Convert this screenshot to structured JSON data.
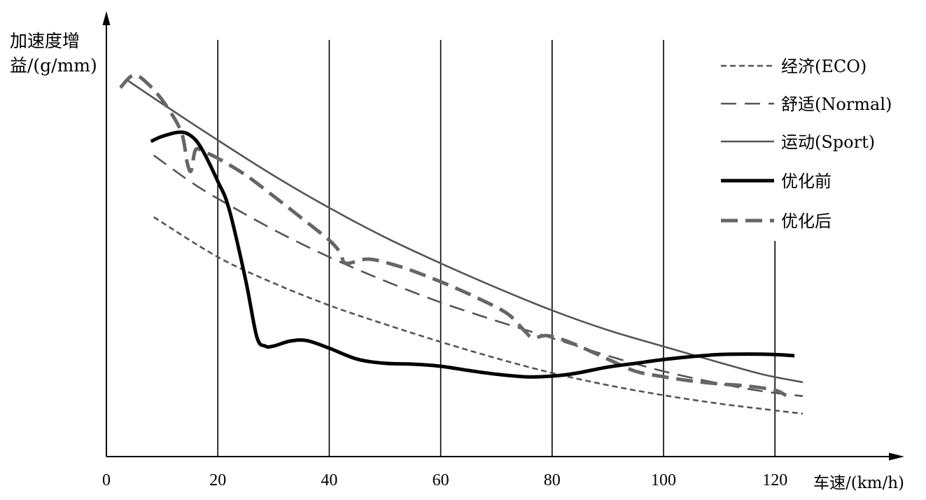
{
  "chart_data": {
    "type": "line",
    "ylabel_lines": [
      "加速度增",
      "益/(g/mm)"
    ],
    "xlabel": "车速/(km/h)",
    "xticks": [
      0,
      20,
      40,
      60,
      80,
      100,
      120
    ],
    "xlim": [
      0,
      140
    ],
    "ylim": [
      0,
      1
    ],
    "yticks_labeled": false,
    "grid": "vertical lines at x = 20, 40, 60, 80, 100, 120",
    "legend_position": "top-right",
    "series": [
      {
        "name": "经济(ECO)",
        "style": "short-dash",
        "color": "#555555",
        "x": [
          8.5,
          20,
          30,
          40,
          50,
          60,
          70,
          80,
          90,
          100,
          110,
          118,
          125
        ],
        "y": [
          0.57,
          0.475,
          0.413,
          0.36,
          0.315,
          0.273,
          0.234,
          0.199,
          0.17,
          0.146,
          0.126,
          0.113,
          0.102
        ]
      },
      {
        "name": "舒适(Normal)",
        "style": "long-dash",
        "color": "#555555",
        "x": [
          8.5,
          15,
          20,
          30,
          40,
          50,
          60,
          70,
          80,
          90,
          100,
          110,
          118,
          125
        ],
        "y": [
          0.717,
          0.655,
          0.614,
          0.54,
          0.475,
          0.418,
          0.367,
          0.323,
          0.282,
          0.24,
          0.203,
          0.174,
          0.155,
          0.144
        ]
      },
      {
        "name": "运动(Sport)",
        "style": "solid-thin",
        "color": "#555555",
        "x": [
          3.5,
          10,
          20,
          30,
          40,
          50,
          60,
          70,
          80,
          90,
          100,
          110,
          118,
          125
        ],
        "y": [
          0.898,
          0.84,
          0.753,
          0.669,
          0.592,
          0.522,
          0.46,
          0.402,
          0.348,
          0.301,
          0.262,
          0.224,
          0.195,
          0.177
        ]
      },
      {
        "name": "优化前",
        "style": "solid-thick",
        "color": "#000000",
        "x": [
          8,
          10,
          13,
          15,
          17,
          20,
          22,
          25,
          27,
          28.5,
          30,
          33,
          36,
          40,
          45,
          50,
          55,
          60,
          65,
          70,
          75,
          78,
          82,
          85,
          90,
          95,
          100,
          105,
          110,
          115,
          120,
          123.5
        ],
        "y": [
          0.75,
          0.762,
          0.772,
          0.765,
          0.735,
          0.655,
          0.59,
          0.42,
          0.285,
          0.263,
          0.263,
          0.275,
          0.276,
          0.258,
          0.232,
          0.222,
          0.22,
          0.215,
          0.205,
          0.196,
          0.19,
          0.19,
          0.194,
          0.2,
          0.213,
          0.222,
          0.231,
          0.238,
          0.243,
          0.244,
          0.243,
          0.24
        ]
      },
      {
        "name": "优化后",
        "style": "dash-thick",
        "color": "#666666",
        "x": [
          2.5,
          5,
          8,
          11,
          13.5,
          14.5,
          15.2,
          16,
          17.5,
          20,
          25,
          30,
          35,
          40,
          42,
          43,
          47,
          52,
          57,
          62,
          67,
          72,
          75,
          76.5,
          79,
          82,
          85,
          90,
          95,
          100,
          105,
          110,
          115,
          120,
          122
        ],
        "y": [
          0.878,
          0.908,
          0.88,
          0.83,
          0.77,
          0.7,
          0.68,
          0.73,
          0.725,
          0.71,
          0.67,
          0.62,
          0.568,
          0.515,
          0.485,
          0.46,
          0.47,
          0.455,
          0.432,
          0.405,
          0.375,
          0.34,
          0.3,
          0.283,
          0.288,
          0.278,
          0.262,
          0.232,
          0.203,
          0.19,
          0.18,
          0.173,
          0.168,
          0.158,
          0.145
        ]
      }
    ]
  }
}
